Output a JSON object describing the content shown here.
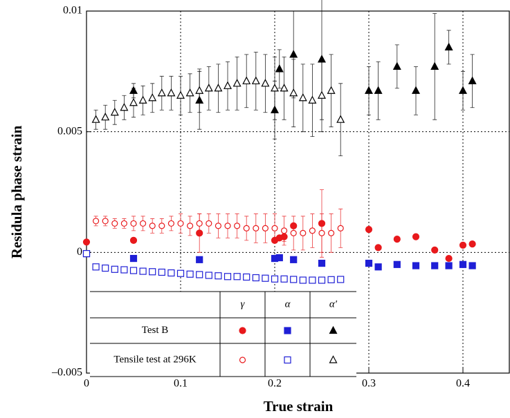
{
  "chart_data": {
    "type": "scatter",
    "x_label": "True strain",
    "y_label": "Residula phase strain",
    "xlim": [
      0,
      0.45
    ],
    "ylim": [
      -0.005,
      0.01
    ],
    "xticks": [
      0,
      0.1,
      0.2,
      0.3,
      0.4
    ],
    "yticks": [
      {
        "value": -0.005,
        "label": "–0.005"
      },
      0,
      0.005,
      0.01
    ],
    "grid_x": [
      0.1,
      0.2,
      0.3,
      0.4
    ],
    "grid_y": [
      0,
      0.005
    ],
    "phases": [
      "γ",
      "α",
      "α′"
    ],
    "markers": [
      "circle",
      "square",
      "triangle"
    ],
    "colors": [
      "#e8191c",
      "#1f1fd6",
      "#000000"
    ],
    "groups": [
      {
        "name": "Test B",
        "filled": true,
        "series": [
          {
            "x": [
              0,
              0.05,
              0.12,
              0.2,
              0.205,
              0.21,
              0.22,
              0.25,
              0.3,
              0.31,
              0.33,
              0.35,
              0.37,
              0.385,
              0.4,
              0.41
            ],
            "values": [
              0.00043,
              0.0005,
              0.0008,
              0.0005,
              0.0006,
              0.00065,
              0.0011,
              0.0012,
              0.00095,
              0.0002,
              0.00055,
              0.00065,
              0.0001,
              -0.00025,
              0.0003,
              0.00035
            ],
            "errors": [
              0,
              0,
              0.0008,
              0.0001,
              0.0001,
              0.0002,
              0,
              0.0014,
              0,
              0,
              0,
              0,
              0,
              0,
              0,
              0
            ]
          },
          {
            "x": [
              0,
              0.05,
              0.12,
              0.2,
              0.205,
              0.22,
              0.25,
              0.3,
              0.31,
              0.33,
              0.35,
              0.37,
              0.385,
              0.4,
              0.41
            ],
            "values": [
              -5e-05,
              -0.00025,
              -0.0003,
              -0.00025,
              -0.00022,
              -0.0003,
              -0.00045,
              -0.00045,
              -0.0006,
              -0.0005,
              -0.00055,
              -0.00055,
              -0.00055,
              -0.0005,
              -0.00055
            ]
          },
          {
            "x": [
              0.05,
              0.12,
              0.2,
              0.205,
              0.22,
              0.25,
              0.3,
              0.31,
              0.33,
              0.35,
              0.37,
              0.385,
              0.4,
              0.41
            ],
            "values": [
              0.0067,
              0.0063,
              0.0059,
              0.0076,
              0.0082,
              0.008,
              0.0067,
              0.0067,
              0.0077,
              0.0067,
              0.0077,
              0.0085,
              0.0067,
              0.0071
            ],
            "errors": [
              0.0003,
              0.0012,
              0.0012,
              0.0008,
              0.0018,
              0.0025,
              0.001,
              0.0012,
              0.0009,
              0.001,
              0.0022,
              0.0007,
              0.0008,
              0.0011
            ]
          }
        ]
      },
      {
        "name": "Tensile test at 296K",
        "filled": false,
        "series": [
          {
            "x": [
              0.01,
              0.02,
              0.03,
              0.04,
              0.05,
              0.06,
              0.07,
              0.08,
              0.09,
              0.1,
              0.11,
              0.12,
              0.13,
              0.14,
              0.15,
              0.16,
              0.17,
              0.18,
              0.19,
              0.2,
              0.21,
              0.22,
              0.23,
              0.24,
              0.25,
              0.26,
              0.27
            ],
            "values": [
              0.0013,
              0.0013,
              0.0012,
              0.0012,
              0.0012,
              0.0012,
              0.0011,
              0.0011,
              0.0012,
              0.0012,
              0.0011,
              0.0012,
              0.0012,
              0.0011,
              0.0011,
              0.0011,
              0.001,
              0.001,
              0.001,
              0.001,
              0.0009,
              0.0008,
              0.0008,
              0.0009,
              0.0008,
              0.0008,
              0.001
            ],
            "errors": [
              0.0002,
              0.0002,
              0.0002,
              0.0002,
              0.0003,
              0.0003,
              0.0003,
              0.0003,
              0.0003,
              0.0004,
              0.0004,
              0.0004,
              0.0004,
              0.0005,
              0.0005,
              0.0005,
              0.0005,
              0.0006,
              0.0006,
              0.0006,
              0.0006,
              0.0007,
              0.0007,
              0.0007,
              0.0008,
              0.0008,
              0.0008
            ]
          },
          {
            "x": [
              0,
              0.01,
              0.02,
              0.03,
              0.04,
              0.05,
              0.06,
              0.07,
              0.08,
              0.09,
              0.1,
              0.11,
              0.12,
              0.13,
              0.14,
              0.15,
              0.16,
              0.17,
              0.18,
              0.19,
              0.2,
              0.21,
              0.22,
              0.23,
              0.24,
              0.25,
              0.26,
              0.27
            ],
            "values": [
              -5e-05,
              -0.0006,
              -0.00065,
              -0.0007,
              -0.00072,
              -0.00075,
              -0.00078,
              -0.0008,
              -0.00082,
              -0.00085,
              -0.00087,
              -0.0009,
              -0.00092,
              -0.00095,
              -0.00097,
              -0.001,
              -0.001,
              -0.00102,
              -0.00105,
              -0.00107,
              -0.0011,
              -0.0011,
              -0.00112,
              -0.00115,
              -0.00115,
              -0.00115,
              -0.00113,
              -0.00112
            ]
          },
          {
            "x": [
              0.01,
              0.02,
              0.03,
              0.04,
              0.05,
              0.06,
              0.07,
              0.08,
              0.09,
              0.1,
              0.11,
              0.12,
              0.13,
              0.14,
              0.15,
              0.16,
              0.17,
              0.18,
              0.19,
              0.2,
              0.21,
              0.22,
              0.23,
              0.24,
              0.25,
              0.26,
              0.27
            ],
            "values": [
              0.0055,
              0.0056,
              0.0058,
              0.006,
              0.0062,
              0.0063,
              0.0064,
              0.0066,
              0.0066,
              0.0065,
              0.0066,
              0.0067,
              0.0068,
              0.0068,
              0.0069,
              0.007,
              0.0071,
              0.0071,
              0.007,
              0.0068,
              0.0068,
              0.0066,
              0.0064,
              0.0063,
              0.0065,
              0.0067,
              0.0055
            ],
            "errors": [
              0.0004,
              0.0005,
              0.0005,
              0.0005,
              0.0006,
              0.0006,
              0.0006,
              0.0007,
              0.0007,
              0.0008,
              0.0008,
              0.0009,
              0.0009,
              0.001,
              0.001,
              0.0011,
              0.0011,
              0.0012,
              0.0012,
              0.0013,
              0.0013,
              0.0014,
              0.0014,
              0.0015,
              0.0015,
              0.0015,
              0.0015
            ]
          }
        ]
      }
    ]
  }
}
